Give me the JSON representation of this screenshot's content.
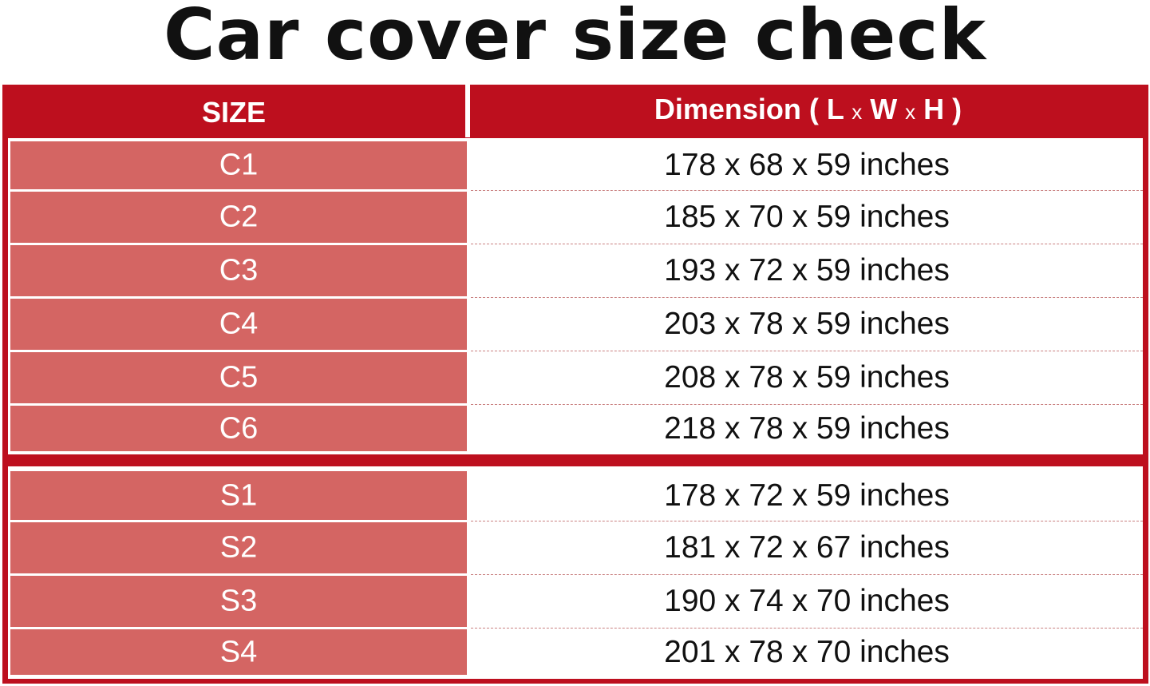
{
  "title": "Car cover size check",
  "header": {
    "size": "SIZE",
    "dimension_pre": "Dimension ( L ",
    "x1": "x",
    "w": " W ",
    "x2": "x",
    "dimension_post": " H )"
  },
  "groups": [
    [
      {
        "size": "C1",
        "dimension": "178 x 68 x 59 inches"
      },
      {
        "size": "C2",
        "dimension": "185 x 70 x 59 inches"
      },
      {
        "size": "C3",
        "dimension": "193 x 72 x 59 inches"
      },
      {
        "size": "C4",
        "dimension": "203 x 78 x 59 inches"
      },
      {
        "size": "C5",
        "dimension": "208 x 78 x 59 inches"
      },
      {
        "size": "C6",
        "dimension": "218 x 78 x 59 inches"
      }
    ],
    [
      {
        "size": "S1",
        "dimension": "178 x 72 x 59 inches"
      },
      {
        "size": "S2",
        "dimension": "181 x 72 x 67 inches"
      },
      {
        "size": "S3",
        "dimension": "190 x 74 x 70 inches"
      },
      {
        "size": "S4",
        "dimension": "201 x 78 x 70 inches"
      }
    ]
  ],
  "colors": {
    "header_red": "#bd0f1e",
    "size_cell": "#d46563"
  }
}
